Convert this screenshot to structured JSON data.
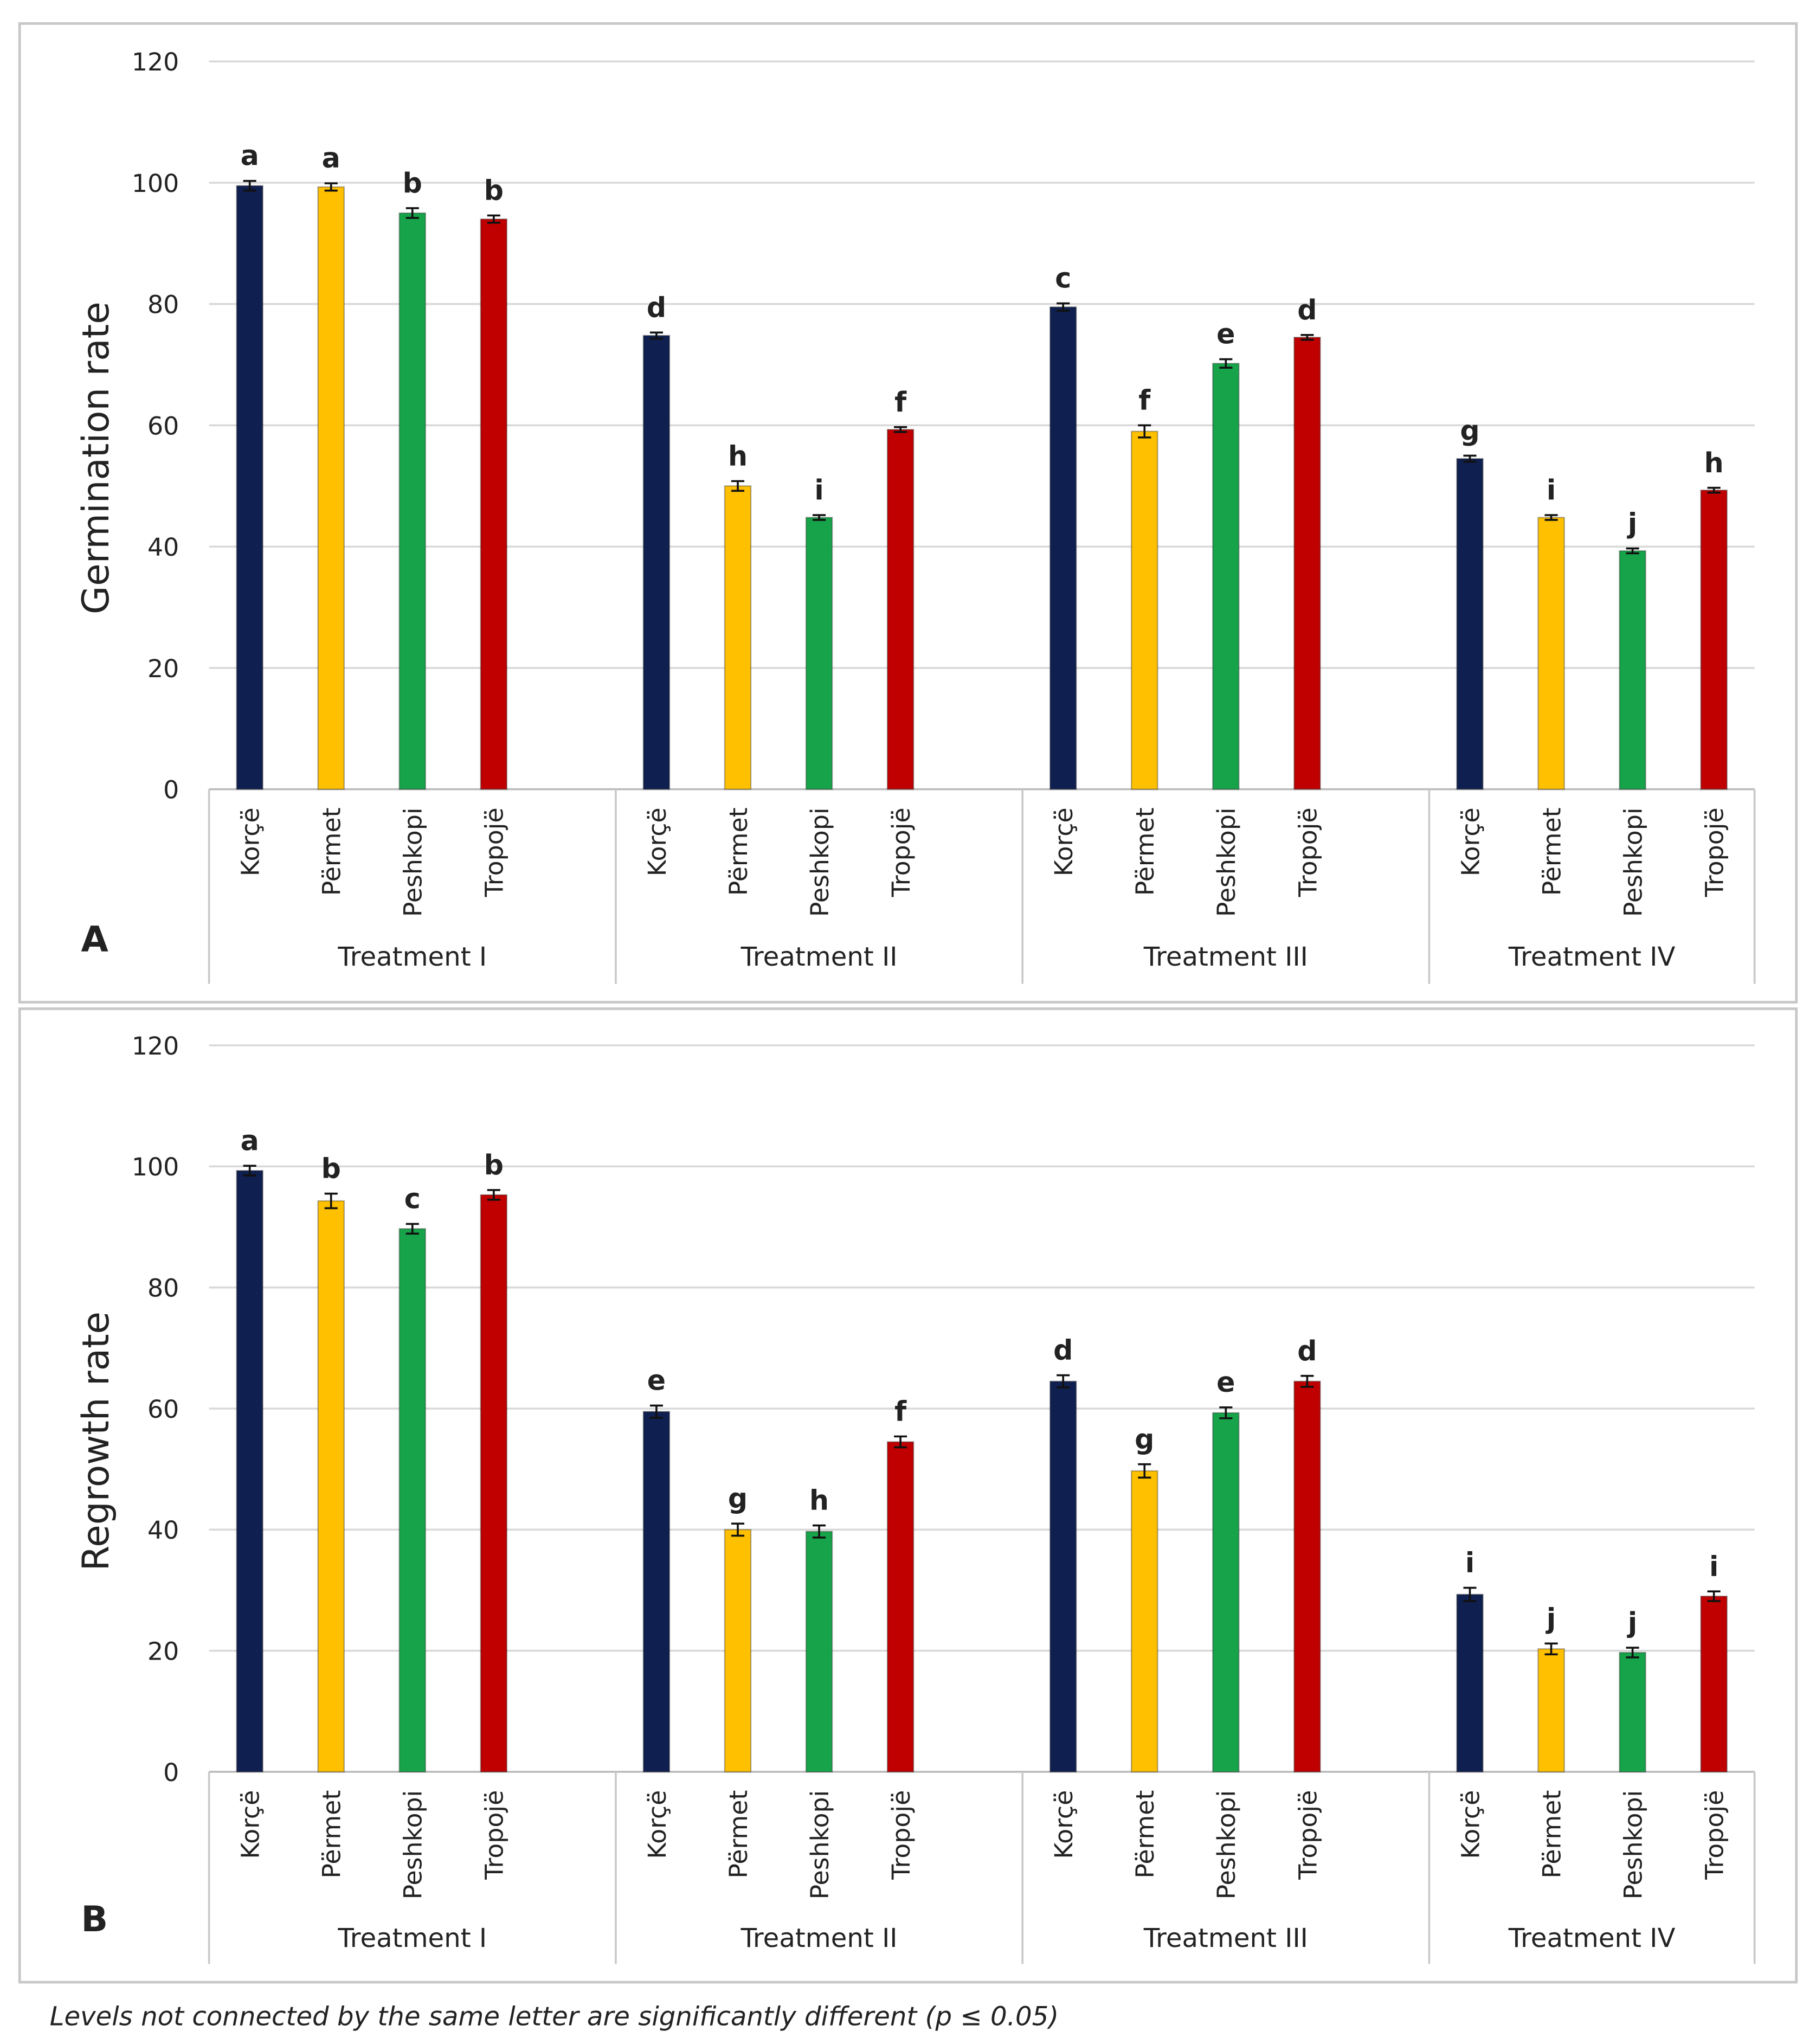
{
  "chart_data": [
    {
      "type": "bar",
      "panel": "A",
      "y_label": "Germination rate",
      "ylim": [
        0,
        120
      ],
      "yticks": [
        0,
        20,
        40,
        60,
        80,
        100,
        120
      ],
      "grid": true,
      "colors": [
        "#0f1f4f",
        "#ffc000",
        "#17a34a",
        "#c00000"
      ],
      "groups": [
        {
          "name": "Treatment I",
          "categories": [
            "Korçë",
            "Përmet",
            "Peshkopi",
            "Tropojë"
          ],
          "values": [
            99.5,
            99.3,
            95,
            94
          ],
          "errors": [
            0.8,
            0.6,
            0.8,
            0.6
          ],
          "letters": [
            "a",
            "a",
            "b",
            "b"
          ]
        },
        {
          "name": "Treatment II",
          "categories": [
            "Korçë",
            "Përmet",
            "Peshkopi",
            "Tropojë"
          ],
          "values": [
            74.8,
            50,
            44.8,
            59.3
          ],
          "errors": [
            0.5,
            0.8,
            0.4,
            0.4
          ],
          "letters": [
            "d",
            "h",
            "i",
            "f"
          ]
        },
        {
          "name": "Treatment III",
          "categories": [
            "Korçë",
            "Përmet",
            "Peshkopi",
            "Tropojë"
          ],
          "values": [
            79.5,
            59,
            70.2,
            74.5
          ],
          "errors": [
            0.6,
            1,
            0.7,
            0.4
          ],
          "letters": [
            "c",
            "f",
            "e",
            "d"
          ]
        },
        {
          "name": "Treatment IV",
          "categories": [
            "Korçë",
            "Përmet",
            "Peshkopi",
            "Tropojë"
          ],
          "values": [
            54.5,
            44.8,
            39.3,
            49.3
          ],
          "errors": [
            0.5,
            0.4,
            0.4,
            0.4
          ],
          "letters": [
            "g",
            "i",
            "j",
            "h"
          ]
        }
      ]
    },
    {
      "type": "bar",
      "panel": "B",
      "y_label": "Regrowth rate",
      "ylim": [
        0,
        120
      ],
      "yticks": [
        0,
        20,
        40,
        60,
        80,
        100,
        120
      ],
      "grid": true,
      "colors": [
        "#0f1f4f",
        "#ffc000",
        "#17a34a",
        "#c00000"
      ],
      "groups": [
        {
          "name": "Treatment I",
          "categories": [
            "Korçë",
            "Përmet",
            "Peshkopi",
            "Tropojë"
          ],
          "values": [
            99.3,
            94.3,
            89.7,
            95.3
          ],
          "errors": [
            0.8,
            1.2,
            0.8,
            0.8
          ],
          "letters": [
            "a",
            "b",
            "c",
            "b"
          ]
        },
        {
          "name": "Treatment II",
          "categories": [
            "Korçë",
            "Përmet",
            "Peshkopi",
            "Tropojë"
          ],
          "values": [
            59.5,
            40,
            39.7,
            54.5
          ],
          "errors": [
            1,
            1,
            1,
            0.9
          ],
          "letters": [
            "e",
            "g",
            "h",
            "f"
          ]
        },
        {
          "name": "Treatment III",
          "categories": [
            "Korçë",
            "Përmet",
            "Peshkopi",
            "Tropojë"
          ],
          "values": [
            64.5,
            49.7,
            59.3,
            64.5
          ],
          "errors": [
            1,
            1.1,
            0.9,
            0.9
          ],
          "letters": [
            "d",
            "g",
            "e",
            "d"
          ]
        },
        {
          "name": "Treatment IV",
          "categories": [
            "Korçë",
            "Përmet",
            "Peshkopi",
            "Tropojë"
          ],
          "values": [
            29.3,
            20.3,
            19.7,
            29
          ],
          "errors": [
            1.1,
            0.9,
            0.8,
            0.8
          ],
          "letters": [
            "i",
            "j",
            "j",
            "i"
          ]
        }
      ]
    }
  ],
  "footnote": "Levels not connected by the same letter are significantly different (p ≤ 0.05)"
}
